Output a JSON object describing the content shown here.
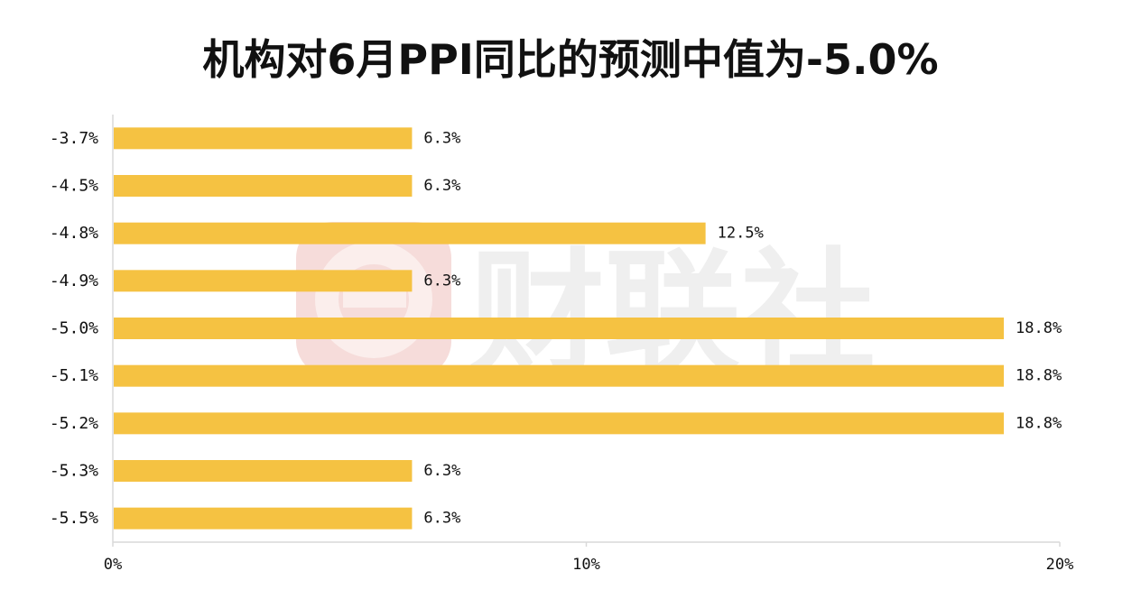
{
  "chart_data": {
    "type": "bar",
    "orientation": "horizontal",
    "title": "机构对6月PPI同比的预测中值为-5.0%",
    "categories": [
      "-3.7%",
      "-4.5%",
      "-4.8%",
      "-4.9%",
      "-5.0%",
      "-5.1%",
      "-5.2%",
      "-5.3%",
      "-5.5%"
    ],
    "values": [
      6.3,
      6.3,
      12.5,
      6.3,
      18.8,
      18.8,
      18.8,
      6.3,
      6.3
    ],
    "value_labels": [
      "6.3%",
      "6.3%",
      "12.5%",
      "6.3%",
      "18.8%",
      "18.8%",
      "18.8%",
      "6.3%",
      "6.3%"
    ],
    "x_ticks": [
      "0%",
      "10%",
      "20%"
    ],
    "xlim": [
      0,
      20
    ],
    "grid": false,
    "bar_color": "#F5C242"
  },
  "watermark": {
    "text": "财联社",
    "color": "#E8E8E8",
    "logo_color": "#F6D9D6"
  }
}
